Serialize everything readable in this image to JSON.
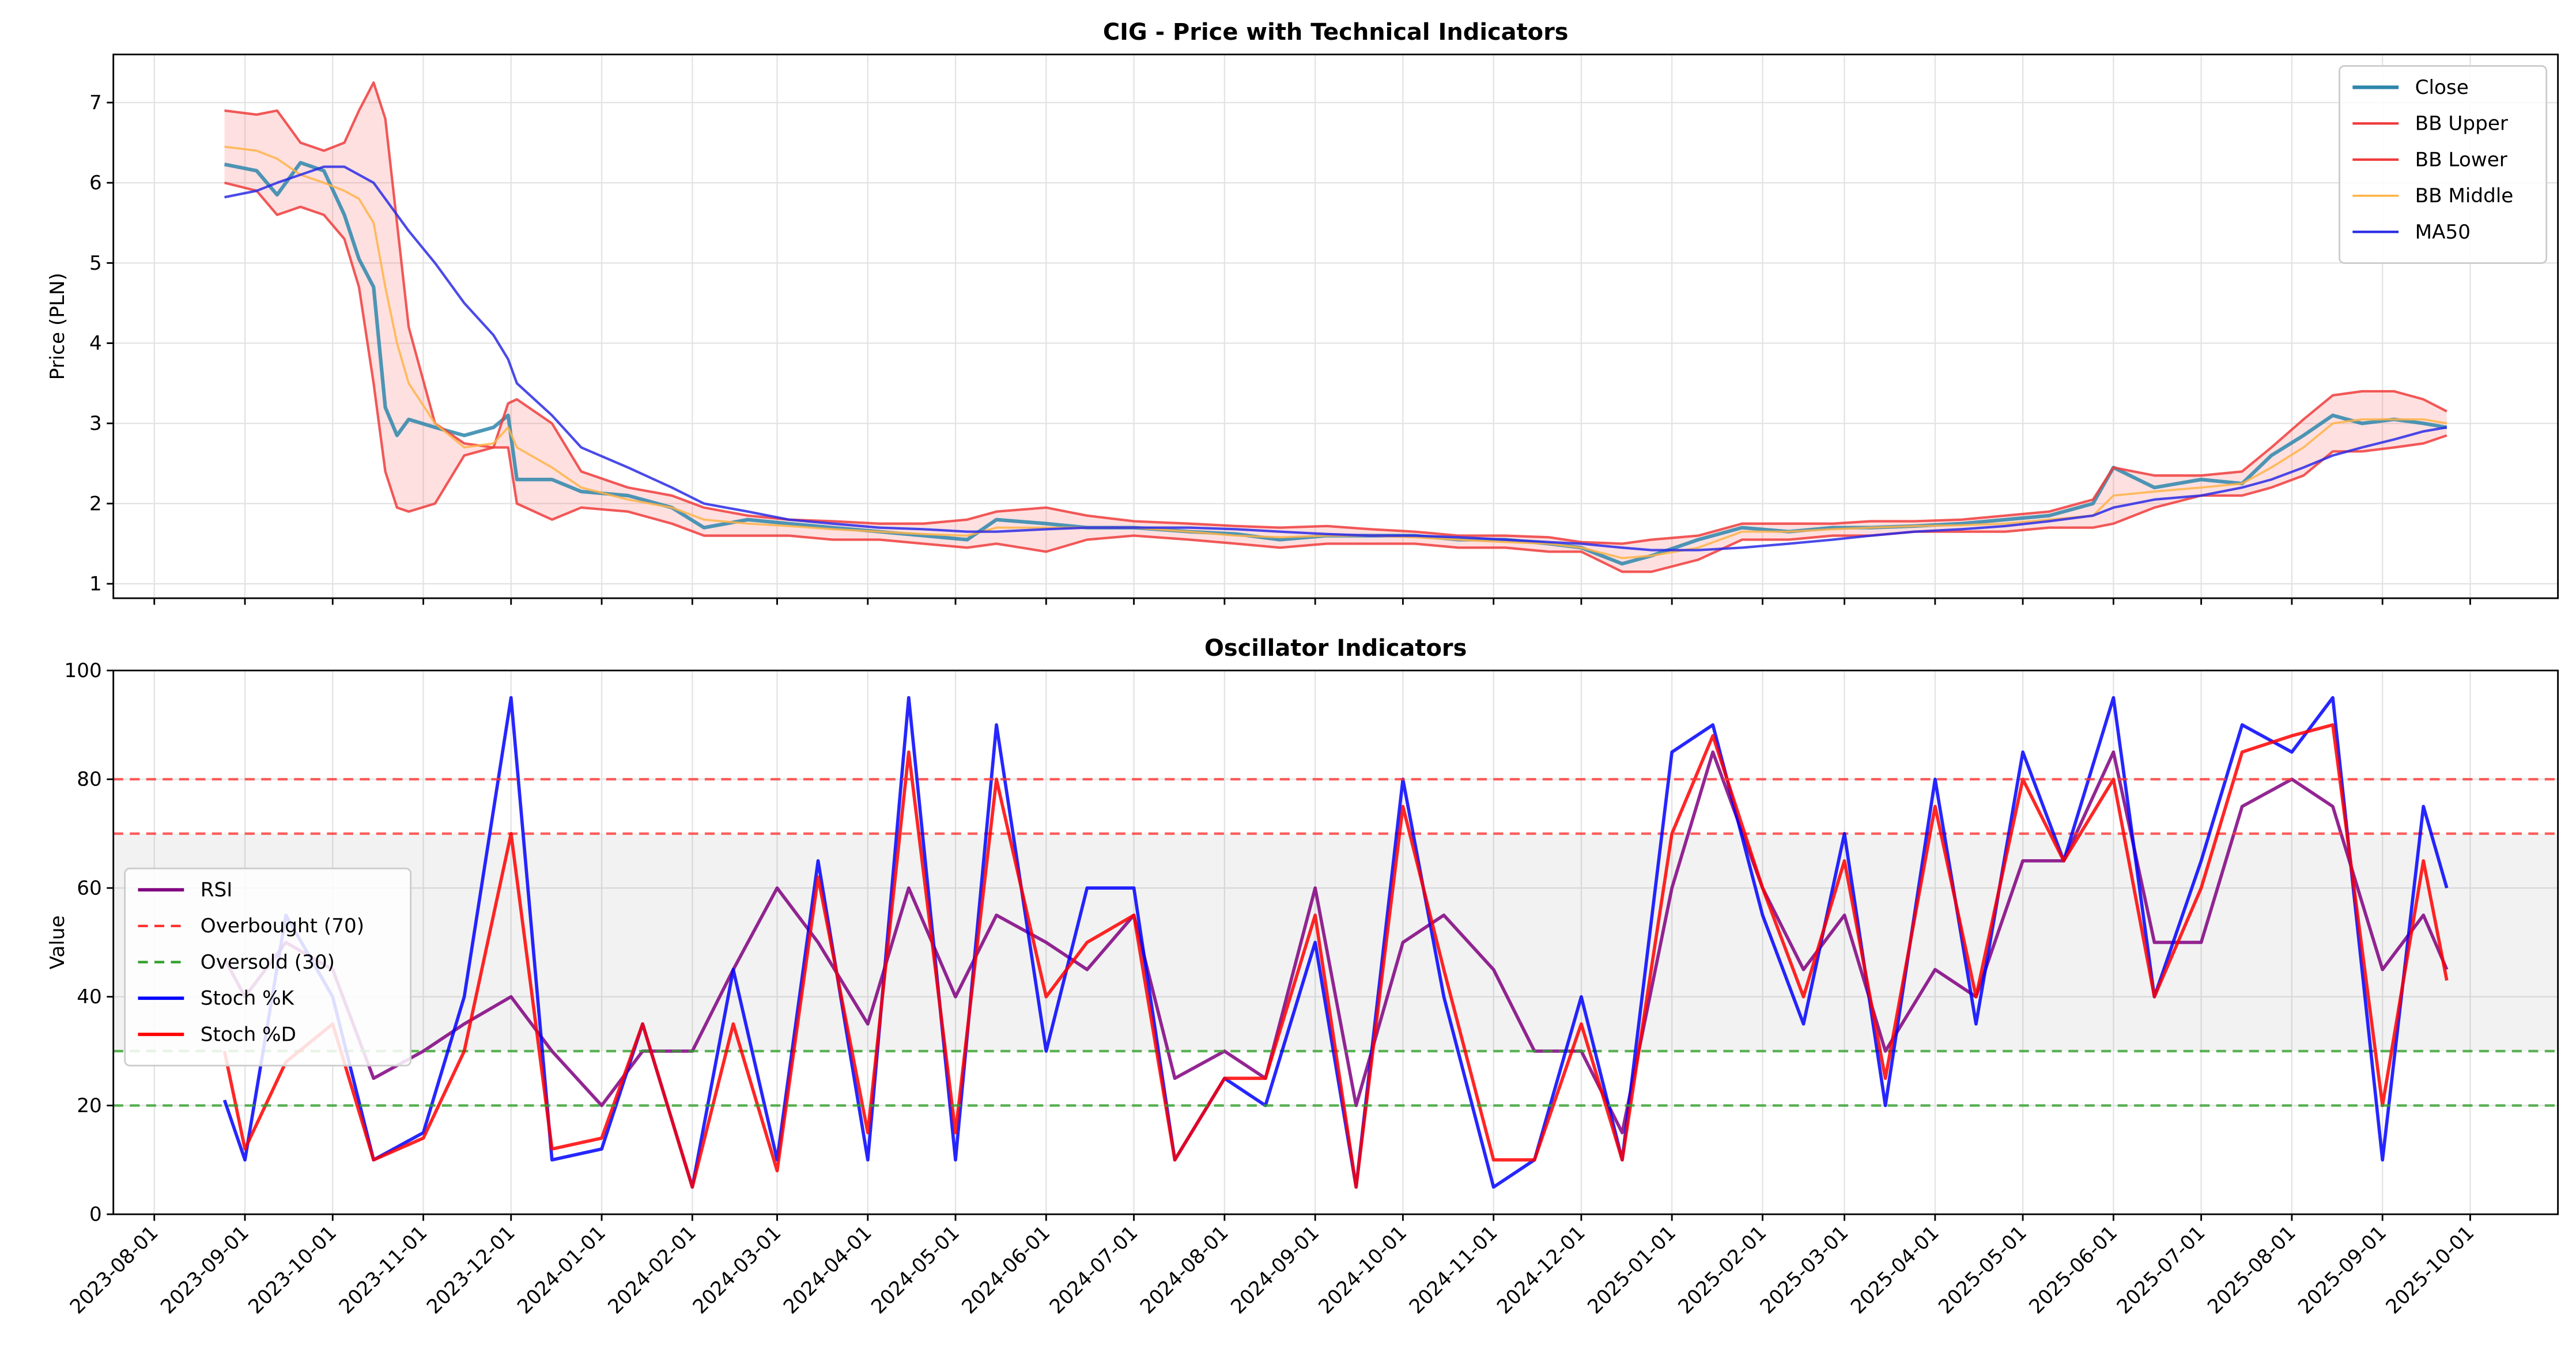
{
  "chart_data": [
    {
      "type": "line",
      "title": "CIG - Price with Technical Indicators",
      "ylabel": "Price (PLN)",
      "x": [
        "2023-08-25",
        "2023-09-05",
        "2023-09-12",
        "2023-09-20",
        "2023-09-28",
        "2023-10-05",
        "2023-10-10",
        "2023-10-15",
        "2023-10-19",
        "2023-10-23",
        "2023-10-27",
        "2023-11-05",
        "2023-11-15",
        "2023-11-25",
        "2023-11-30",
        "2023-12-03",
        "2023-12-15",
        "2023-12-25",
        "2024-01-10",
        "2024-01-25",
        "2024-02-05",
        "2024-02-20",
        "2024-03-05",
        "2024-03-20",
        "2024-04-05",
        "2024-04-20",
        "2024-05-05",
        "2024-05-15",
        "2024-06-01",
        "2024-06-15",
        "2024-07-01",
        "2024-07-20",
        "2024-08-05",
        "2024-08-20",
        "2024-09-05",
        "2024-09-20",
        "2024-10-05",
        "2024-10-20",
        "2024-11-05",
        "2024-11-20",
        "2024-12-01",
        "2024-12-15",
        "2024-12-25",
        "2025-01-10",
        "2025-01-25",
        "2025-02-10",
        "2025-02-25",
        "2025-03-10",
        "2025-03-25",
        "2025-04-10",
        "2025-04-25",
        "2025-05-10",
        "2025-05-25",
        "2025-06-01",
        "2025-06-15",
        "2025-07-01",
        "2025-07-15",
        "2025-07-25",
        "2025-08-05",
        "2025-08-15",
        "2025-08-25",
        "2025-09-05",
        "2025-09-15",
        "2025-09-23"
      ],
      "xlim": [
        "2023-07-18",
        "2025-10-31"
      ],
      "xticks": [
        "2023-08-01",
        "2023-09-01",
        "2023-10-01",
        "2023-11-01",
        "2023-12-01",
        "2024-01-01",
        "2024-02-01",
        "2024-03-01",
        "2024-04-01",
        "2024-05-01",
        "2024-06-01",
        "2024-07-01",
        "2024-08-01",
        "2024-09-01",
        "2024-10-01",
        "2024-11-01",
        "2024-12-01",
        "2025-01-01",
        "2025-02-01",
        "2025-03-01",
        "2025-04-01",
        "2025-05-01",
        "2025-06-01",
        "2025-07-01",
        "2025-08-01",
        "2025-09-01",
        "2025-10-01"
      ],
      "xtick_labels": false,
      "ylim": [
        0.82,
        7.6
      ],
      "yticks": [
        1,
        2,
        3,
        4,
        5,
        6,
        7
      ],
      "grid": true,
      "legend": "upper right",
      "fill_between": {
        "series": [
          1,
          2
        ],
        "color": "#ff6666",
        "opacity": 0.2
      },
      "series": [
        {
          "name": "Close",
          "color": "#2e86ab",
          "linewidth": 2.2,
          "values": [
            6.23,
            6.15,
            5.85,
            6.25,
            6.15,
            5.6,
            5.05,
            4.7,
            3.2,
            2.85,
            3.05,
            2.95,
            2.85,
            2.95,
            3.1,
            2.3,
            2.3,
            2.15,
            2.1,
            1.95,
            1.7,
            1.8,
            1.75,
            1.7,
            1.65,
            1.6,
            1.55,
            1.8,
            1.75,
            1.7,
            1.7,
            1.65,
            1.62,
            1.55,
            1.6,
            1.6,
            1.6,
            1.55,
            1.55,
            1.5,
            1.45,
            1.25,
            1.35,
            1.55,
            1.7,
            1.65,
            1.7,
            1.7,
            1.72,
            1.75,
            1.8,
            1.85,
            2.0,
            2.45,
            2.2,
            2.3,
            2.25,
            2.6,
            2.85,
            3.1,
            3.0,
            3.05,
            3.0,
            2.95
          ]
        },
        {
          "name": "BB Upper",
          "color": "#f03c3c",
          "linewidth": 1.5,
          "values": [
            6.9,
            6.85,
            6.9,
            6.5,
            6.4,
            6.5,
            6.9,
            7.25,
            6.8,
            5.5,
            4.2,
            3.0,
            2.75,
            2.7,
            3.25,
            3.3,
            3.0,
            2.4,
            2.2,
            2.1,
            1.95,
            1.85,
            1.8,
            1.78,
            1.75,
            1.75,
            1.8,
            1.9,
            1.95,
            1.85,
            1.78,
            1.75,
            1.72,
            1.7,
            1.72,
            1.68,
            1.65,
            1.6,
            1.6,
            1.58,
            1.52,
            1.5,
            1.55,
            1.6,
            1.75,
            1.75,
            1.75,
            1.78,
            1.78,
            1.8,
            1.85,
            1.9,
            2.05,
            2.45,
            2.35,
            2.35,
            2.4,
            2.7,
            3.05,
            3.35,
            3.4,
            3.4,
            3.3,
            3.15
          ]
        },
        {
          "name": "BB Lower",
          "color": "#f03c3c",
          "linewidth": 1.5,
          "values": [
            6.0,
            5.9,
            5.6,
            5.7,
            5.6,
            5.3,
            4.7,
            3.5,
            2.4,
            1.95,
            1.9,
            2.0,
            2.6,
            2.7,
            2.7,
            2.0,
            1.8,
            1.95,
            1.9,
            1.75,
            1.6,
            1.6,
            1.6,
            1.55,
            1.55,
            1.5,
            1.45,
            1.5,
            1.4,
            1.55,
            1.6,
            1.55,
            1.5,
            1.45,
            1.5,
            1.5,
            1.5,
            1.45,
            1.45,
            1.4,
            1.4,
            1.15,
            1.15,
            1.3,
            1.55,
            1.55,
            1.6,
            1.6,
            1.65,
            1.65,
            1.65,
            1.7,
            1.7,
            1.75,
            1.95,
            2.1,
            2.1,
            2.2,
            2.35,
            2.65,
            2.65,
            2.7,
            2.75,
            2.85
          ]
        },
        {
          "name": "BB Middle",
          "color": "#ffb347",
          "linewidth": 1.3,
          "values": [
            6.45,
            6.4,
            6.3,
            6.1,
            6.0,
            5.9,
            5.8,
            5.5,
            4.7,
            4.0,
            3.5,
            3.0,
            2.7,
            2.75,
            2.95,
            2.7,
            2.45,
            2.2,
            2.05,
            1.95,
            1.8,
            1.75,
            1.72,
            1.68,
            1.65,
            1.62,
            1.6,
            1.7,
            1.7,
            1.7,
            1.7,
            1.65,
            1.6,
            1.58,
            1.6,
            1.6,
            1.58,
            1.55,
            1.52,
            1.5,
            1.45,
            1.32,
            1.35,
            1.45,
            1.65,
            1.65,
            1.68,
            1.7,
            1.72,
            1.73,
            1.75,
            1.8,
            1.85,
            2.1,
            2.15,
            2.2,
            2.25,
            2.45,
            2.7,
            3.0,
            3.05,
            3.05,
            3.05,
            3.0
          ]
        },
        {
          "name": "MA50",
          "color": "#2a2ae6",
          "linewidth": 1.5,
          "values": [
            5.82,
            5.9,
            6.0,
            6.1,
            6.2,
            6.2,
            6.1,
            6.0,
            5.8,
            5.6,
            5.4,
            5.0,
            4.5,
            4.1,
            3.8,
            3.5,
            3.1,
            2.7,
            2.45,
            2.2,
            2.0,
            1.9,
            1.8,
            1.75,
            1.7,
            1.68,
            1.65,
            1.65,
            1.68,
            1.7,
            1.7,
            1.7,
            1.68,
            1.65,
            1.62,
            1.6,
            1.6,
            1.58,
            1.55,
            1.52,
            1.5,
            1.45,
            1.42,
            1.42,
            1.45,
            1.5,
            1.55,
            1.6,
            1.65,
            1.68,
            1.72,
            1.78,
            1.85,
            1.95,
            2.05,
            2.1,
            2.2,
            2.3,
            2.45,
            2.6,
            2.7,
            2.8,
            2.9,
            2.95
          ]
        }
      ]
    },
    {
      "type": "line",
      "title": "Oscillator Indicators",
      "ylabel": "Value",
      "x": [
        "2023-08-25",
        "2023-09-01",
        "2023-09-15",
        "2023-10-01",
        "2023-10-15",
        "2023-11-01",
        "2023-11-15",
        "2023-12-01",
        "2023-12-15",
        "2024-01-01",
        "2024-01-15",
        "2024-02-01",
        "2024-02-15",
        "2024-03-01",
        "2024-03-15",
        "2024-04-01",
        "2024-04-15",
        "2024-05-01",
        "2024-05-15",
        "2024-06-01",
        "2024-06-15",
        "2024-07-01",
        "2024-07-15",
        "2024-08-01",
        "2024-08-15",
        "2024-09-01",
        "2024-09-15",
        "2024-10-01",
        "2024-10-15",
        "2024-11-01",
        "2024-11-15",
        "2024-12-01",
        "2024-12-15",
        "2025-01-01",
        "2025-01-15",
        "2025-02-01",
        "2025-02-15",
        "2025-03-01",
        "2025-03-15",
        "2025-04-01",
        "2025-04-15",
        "2025-05-01",
        "2025-05-15",
        "2025-06-01",
        "2025-06-15",
        "2025-07-01",
        "2025-07-15",
        "2025-08-01",
        "2025-08-15",
        "2025-09-01",
        "2025-09-15",
        "2025-09-23"
      ],
      "xlim": [
        "2023-07-18",
        "2025-10-31"
      ],
      "xticks": [
        "2023-08-01",
        "2023-09-01",
        "2023-10-01",
        "2023-11-01",
        "2023-12-01",
        "2024-01-01",
        "2024-02-01",
        "2024-03-01",
        "2024-04-01",
        "2024-05-01",
        "2024-06-01",
        "2024-07-01",
        "2024-08-01",
        "2024-09-01",
        "2024-10-01",
        "2024-11-01",
        "2024-12-01",
        "2025-01-01",
        "2025-02-01",
        "2025-03-01",
        "2025-04-01",
        "2025-05-01",
        "2025-06-01",
        "2025-07-01",
        "2025-08-01",
        "2025-09-01",
        "2025-10-01"
      ],
      "ylim": [
        0,
        100
      ],
      "yticks": [
        0,
        20,
        40,
        60,
        80,
        100
      ],
      "grid": true,
      "legend": "center left",
      "span": {
        "range": [
          30,
          70
        ],
        "color": "#808080",
        "opacity": 0.1
      },
      "series": [
        {
          "name": "RSI",
          "color": "#800080",
          "linewidth": 2,
          "values": [
            47,
            40,
            50,
            45,
            25,
            30,
            35,
            40,
            30,
            20,
            30,
            30,
            45,
            60,
            50,
            35,
            60,
            40,
            55,
            50,
            45,
            55,
            25,
            30,
            25,
            60,
            20,
            50,
            55,
            45,
            30,
            30,
            15,
            60,
            85,
            60,
            45,
            55,
            30,
            45,
            40,
            65,
            65,
            85,
            50,
            50,
            75,
            80,
            75,
            45,
            55,
            45
          ]
        },
        {
          "name": "Overbought (70)",
          "color": "#ff3333",
          "style": "dashed",
          "hline": 70
        },
        {
          "name": "Oversold (30)",
          "color": "#33a02c",
          "style": "dashed",
          "hline": 30
        },
        {
          "name": "Stoch %K",
          "color": "#0000ff",
          "linewidth": 2,
          "values": [
            21,
            10,
            55,
            40,
            10,
            15,
            40,
            95,
            10,
            12,
            35,
            5,
            45,
            10,
            65,
            10,
            95,
            10,
            90,
            30,
            60,
            60,
            10,
            25,
            20,
            50,
            5,
            80,
            40,
            5,
            10,
            40,
            10,
            85,
            90,
            55,
            35,
            70,
            20,
            80,
            35,
            85,
            65,
            95,
            40,
            65,
            90,
            85,
            95,
            10,
            75,
            60
          ]
        },
        {
          "name": "Stoch %D",
          "color": "#ff0000",
          "linewidth": 2,
          "values": [
            30,
            12,
            28,
            35,
            10,
            14,
            30,
            70,
            12,
            14,
            35,
            5,
            35,
            8,
            62,
            15,
            85,
            15,
            80,
            40,
            50,
            55,
            10,
            25,
            25,
            55,
            5,
            75,
            45,
            10,
            10,
            35,
            10,
            70,
            88,
            60,
            40,
            65,
            25,
            75,
            40,
            80,
            65,
            80,
            40,
            60,
            85,
            88,
            90,
            20,
            65,
            43
          ]
        },
        {
          "color": "#ff3333",
          "style": "dashed",
          "hline": 80
        },
        {
          "color": "#33a02c",
          "style": "dashed",
          "hline": 20
        }
      ]
    }
  ]
}
